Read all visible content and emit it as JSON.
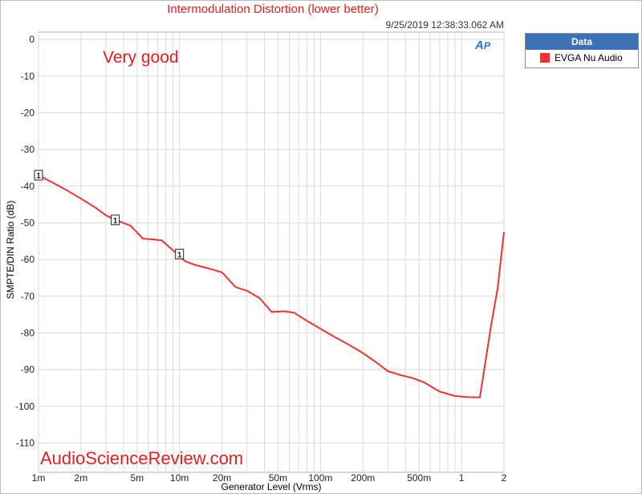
{
  "chart_data": {
    "type": "line",
    "title": "Intermodulation Distortion (lower better)",
    "timestamp": "9/25/2019 12:38:33.062 AM",
    "annotation": "Very good",
    "watermark": "AudioScienceReview.com",
    "xlabel": "Generator Level (Vrms)",
    "ylabel": "SMPTE/DIN Ratio (dB)",
    "xscale": "log",
    "xlim": [
      0.001,
      2
    ],
    "ylim": [
      -118,
      2
    ],
    "grid": true,
    "x_ticks": [
      {
        "value": 0.001,
        "label": "1m"
      },
      {
        "value": 0.002,
        "label": "2m"
      },
      {
        "value": 0.005,
        "label": "5m"
      },
      {
        "value": 0.01,
        "label": "10m"
      },
      {
        "value": 0.02,
        "label": "20m"
      },
      {
        "value": 0.05,
        "label": "50m"
      },
      {
        "value": 0.1,
        "label": "100m"
      },
      {
        "value": 0.2,
        "label": "200m"
      },
      {
        "value": 0.5,
        "label": "500m"
      },
      {
        "value": 1,
        "label": "1"
      },
      {
        "value": 2,
        "label": "2"
      }
    ],
    "y_ticks": [
      0,
      -10,
      -20,
      -30,
      -40,
      -50,
      -60,
      -70,
      -80,
      -90,
      -100,
      -110
    ],
    "legend": {
      "title": "Data",
      "position": "right"
    },
    "series": [
      {
        "name": "EVGA Nu Audio",
        "color": "#ee3333",
        "x": [
          0.001,
          0.0013,
          0.0016,
          0.002,
          0.0025,
          0.003,
          0.0035,
          0.004,
          0.0045,
          0.0055,
          0.0065,
          0.0075,
          0.009,
          0.011,
          0.013,
          0.016,
          0.02,
          0.025,
          0.03,
          0.037,
          0.045,
          0.055,
          0.065,
          0.08,
          0.1,
          0.13,
          0.16,
          0.2,
          0.25,
          0.3,
          0.37,
          0.45,
          0.55,
          0.7,
          0.9,
          1.1,
          1.35,
          1.62,
          1.8,
          2.0
        ],
        "y": [
          -37,
          -39.3,
          -41.2,
          -43.4,
          -45.7,
          -47.9,
          -49.2,
          -50,
          -50.8,
          -54.3,
          -54.5,
          -54.8,
          -57.5,
          -60.5,
          -61.5,
          -62.4,
          -63.5,
          -67.5,
          -68.5,
          -70.5,
          -74.3,
          -74.1,
          -74.5,
          -76.7,
          -78.9,
          -81.4,
          -83.3,
          -85.5,
          -88.1,
          -90.4,
          -91.5,
          -92.3,
          -93.6,
          -96,
          -97.2,
          -97.5,
          -97.6,
          -78,
          -68,
          -52.5
        ]
      }
    ],
    "markers": [
      {
        "x": 0.001,
        "y": -37,
        "label": "1"
      },
      {
        "x": 0.0035,
        "y": -49.2,
        "label": "1"
      },
      {
        "x": 0.01,
        "y": -58.5,
        "label": "1"
      }
    ]
  },
  "logo": {
    "text": "AP"
  },
  "colors": {
    "grid": "#dadada",
    "axis": "#b0b0b0",
    "legend_header": "#3e70b6",
    "annotation": "#e31e1e",
    "watermark": "#e31e1e",
    "title": "#e31e1e"
  }
}
